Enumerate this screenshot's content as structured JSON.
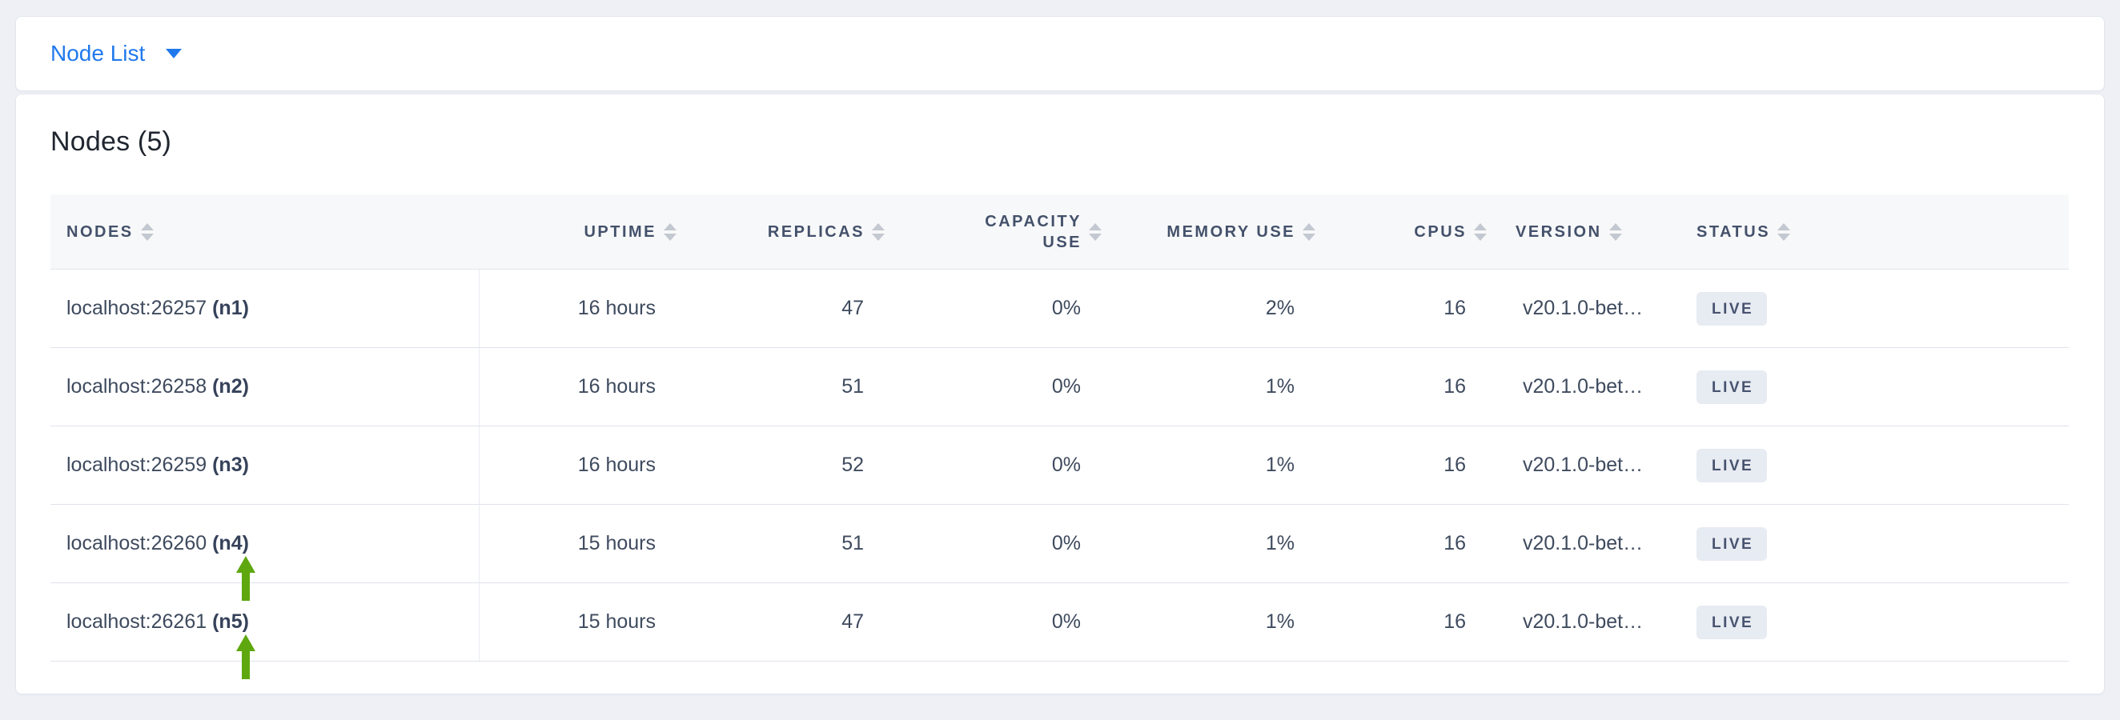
{
  "topbar": {
    "dropdown_label": "Node List",
    "dropdown_icon": "chevron-down-icon"
  },
  "main": {
    "title": "Nodes (5)"
  },
  "table": {
    "columns": [
      {
        "key": "nodes",
        "label": "NODES",
        "sort_icon": "sort-icon"
      },
      {
        "key": "uptime",
        "label": "UPTIME",
        "sort_icon": "sort-icon"
      },
      {
        "key": "replicas",
        "label": "REPLICAS",
        "sort_icon": "sort-icon"
      },
      {
        "key": "capacity_use",
        "label": "CAPACITY USE",
        "sort_icon": "sort-icon"
      },
      {
        "key": "memory_use",
        "label": "MEMORY USE",
        "sort_icon": "sort-icon"
      },
      {
        "key": "cpus",
        "label": "CPUS",
        "sort_icon": "sort-icon"
      },
      {
        "key": "version",
        "label": "VERSION",
        "sort_icon": "sort-icon"
      },
      {
        "key": "status",
        "label": "STATUS",
        "sort_icon": "sort-icon"
      }
    ],
    "rows": [
      {
        "address": "localhost:26257",
        "node_id": "(n1)",
        "uptime": "16 hours",
        "replicas": "47",
        "capacity_use": "0%",
        "memory_use": "2%",
        "cpus": "16",
        "version": "v20.1.0-bet…",
        "status": "LIVE",
        "annotation_arrow": false
      },
      {
        "address": "localhost:26258",
        "node_id": "(n2)",
        "uptime": "16 hours",
        "replicas": "51",
        "capacity_use": "0%",
        "memory_use": "1%",
        "cpus": "16",
        "version": "v20.1.0-bet…",
        "status": "LIVE",
        "annotation_arrow": false
      },
      {
        "address": "localhost:26259",
        "node_id": "(n3)",
        "uptime": "16 hours",
        "replicas": "52",
        "capacity_use": "0%",
        "memory_use": "1%",
        "cpus": "16",
        "version": "v20.1.0-bet…",
        "status": "LIVE",
        "annotation_arrow": false
      },
      {
        "address": "localhost:26260",
        "node_id": "(n4)",
        "uptime": "15 hours",
        "replicas": "51",
        "capacity_use": "0%",
        "memory_use": "1%",
        "cpus": "16",
        "version": "v20.1.0-bet…",
        "status": "LIVE",
        "annotation_arrow": true
      },
      {
        "address": "localhost:26261",
        "node_id": "(n5)",
        "uptime": "15 hours",
        "replicas": "47",
        "capacity_use": "0%",
        "memory_use": "1%",
        "cpus": "16",
        "version": "v20.1.0-bet…",
        "status": "LIVE",
        "annotation_arrow": true
      }
    ]
  },
  "colors": {
    "accent_blue": "#2079ec",
    "annotation_arrow_green": "#5ea70e",
    "badge_background": "#e7ebf2",
    "badge_text": "#47536f",
    "header_text": "#44516b",
    "cell_text": "#3e4a5e",
    "page_background": "#eef0f5"
  }
}
